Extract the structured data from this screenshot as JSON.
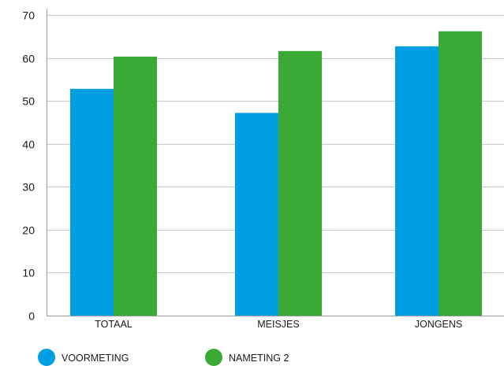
{
  "chart_data": {
    "type": "bar",
    "title": "",
    "xlabel": "",
    "ylabel": "",
    "categories": [
      "TOTAAL",
      "MEISJES",
      "JONGENS"
    ],
    "series": [
      {
        "name": "VOORMETING",
        "color": "#009ee3",
        "values": [
          52.8,
          47.2,
          62.7
        ]
      },
      {
        "name": "NAMETING 2",
        "color": "#3aaa35",
        "values": [
          60.3,
          61.6,
          66.2
        ]
      }
    ],
    "ylim": [
      0,
      70
    ],
    "yticks": [
      0,
      10,
      20,
      30,
      40,
      50,
      60,
      70
    ],
    "grid": true,
    "legend_position": "bottom-left"
  }
}
